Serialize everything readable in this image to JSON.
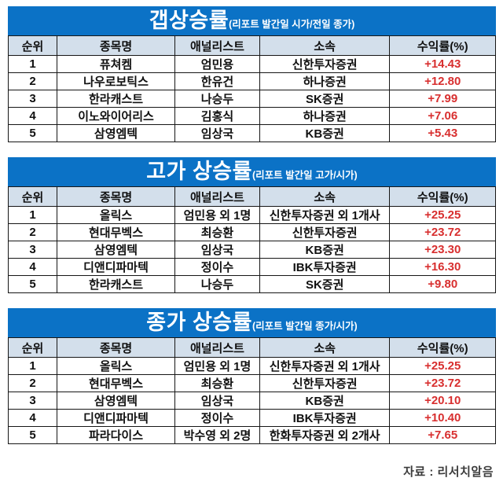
{
  "colors": {
    "title_bar_blue": "#0b72c6",
    "title_text": "#ffffff",
    "header_row_bg": "#d3dfeb",
    "cell_border": "#161616",
    "return_red": "#d82f2f",
    "source_text": "#3c3c3c"
  },
  "footer": {
    "source_label": "자료 : 리서치알음"
  },
  "chart_data": [
    {
      "type": "table",
      "title": "갭상승률",
      "subtitle": "(리포트 발간일 시가/전일 종가)",
      "columns": [
        "순위",
        "종목명",
        "애널리스트",
        "소속",
        "수익률(%)"
      ],
      "rows": [
        [
          "1",
          "퓨쳐켐",
          "엄민용",
          "신한투자증권",
          "+14.43"
        ],
        [
          "2",
          "나우로보틱스",
          "한유건",
          "하나증권",
          "+12.80"
        ],
        [
          "3",
          "한라캐스트",
          "나승두",
          "SK증권",
          "+7.99"
        ],
        [
          "4",
          "이노와이어리스",
          "김홍식",
          "하나증권",
          "+7.06"
        ],
        [
          "5",
          "삼영엠텍",
          "임상국",
          "KB증권",
          "+5.43"
        ]
      ]
    },
    {
      "type": "table",
      "title": "고가 상승률",
      "subtitle": "(리포트 발간일 고가/시가)",
      "columns": [
        "순위",
        "종목명",
        "애널리스트",
        "소속",
        "수익률(%)"
      ],
      "rows": [
        [
          "1",
          "올릭스",
          "엄민용 외 1명",
          "신한투자증권 외 1개사",
          "+25.25"
        ],
        [
          "2",
          "현대무벡스",
          "최승환",
          "신한투자증권",
          "+23.72"
        ],
        [
          "3",
          "삼영엠텍",
          "임상국",
          "KB증권",
          "+23.30"
        ],
        [
          "4",
          "디앤디파마텍",
          "정이수",
          "IBK투자증권",
          "+16.30"
        ],
        [
          "5",
          "한라캐스트",
          "나승두",
          "SK증권",
          "+9.80"
        ]
      ]
    },
    {
      "type": "table",
      "title": "종가 상승률",
      "subtitle": "(리포트 발간일 종가/시가)",
      "columns": [
        "순위",
        "종목명",
        "애널리스트",
        "소속",
        "수익률(%)"
      ],
      "rows": [
        [
          "1",
          "올릭스",
          "엄민용 외 1명",
          "신한투자증권 외 1개사",
          "+25.25"
        ],
        [
          "2",
          "현대무벡스",
          "최승환",
          "신한투자증권",
          "+23.72"
        ],
        [
          "3",
          "삼영엠텍",
          "임상국",
          "KB증권",
          "+20.10"
        ],
        [
          "4",
          "디앤디파마텍",
          "정이수",
          "IBK투자증권",
          "+10.40"
        ],
        [
          "5",
          "파라다이스",
          "박수영 외 2명",
          "한화투자증권 외 2개사",
          "+7.65"
        ]
      ]
    }
  ]
}
